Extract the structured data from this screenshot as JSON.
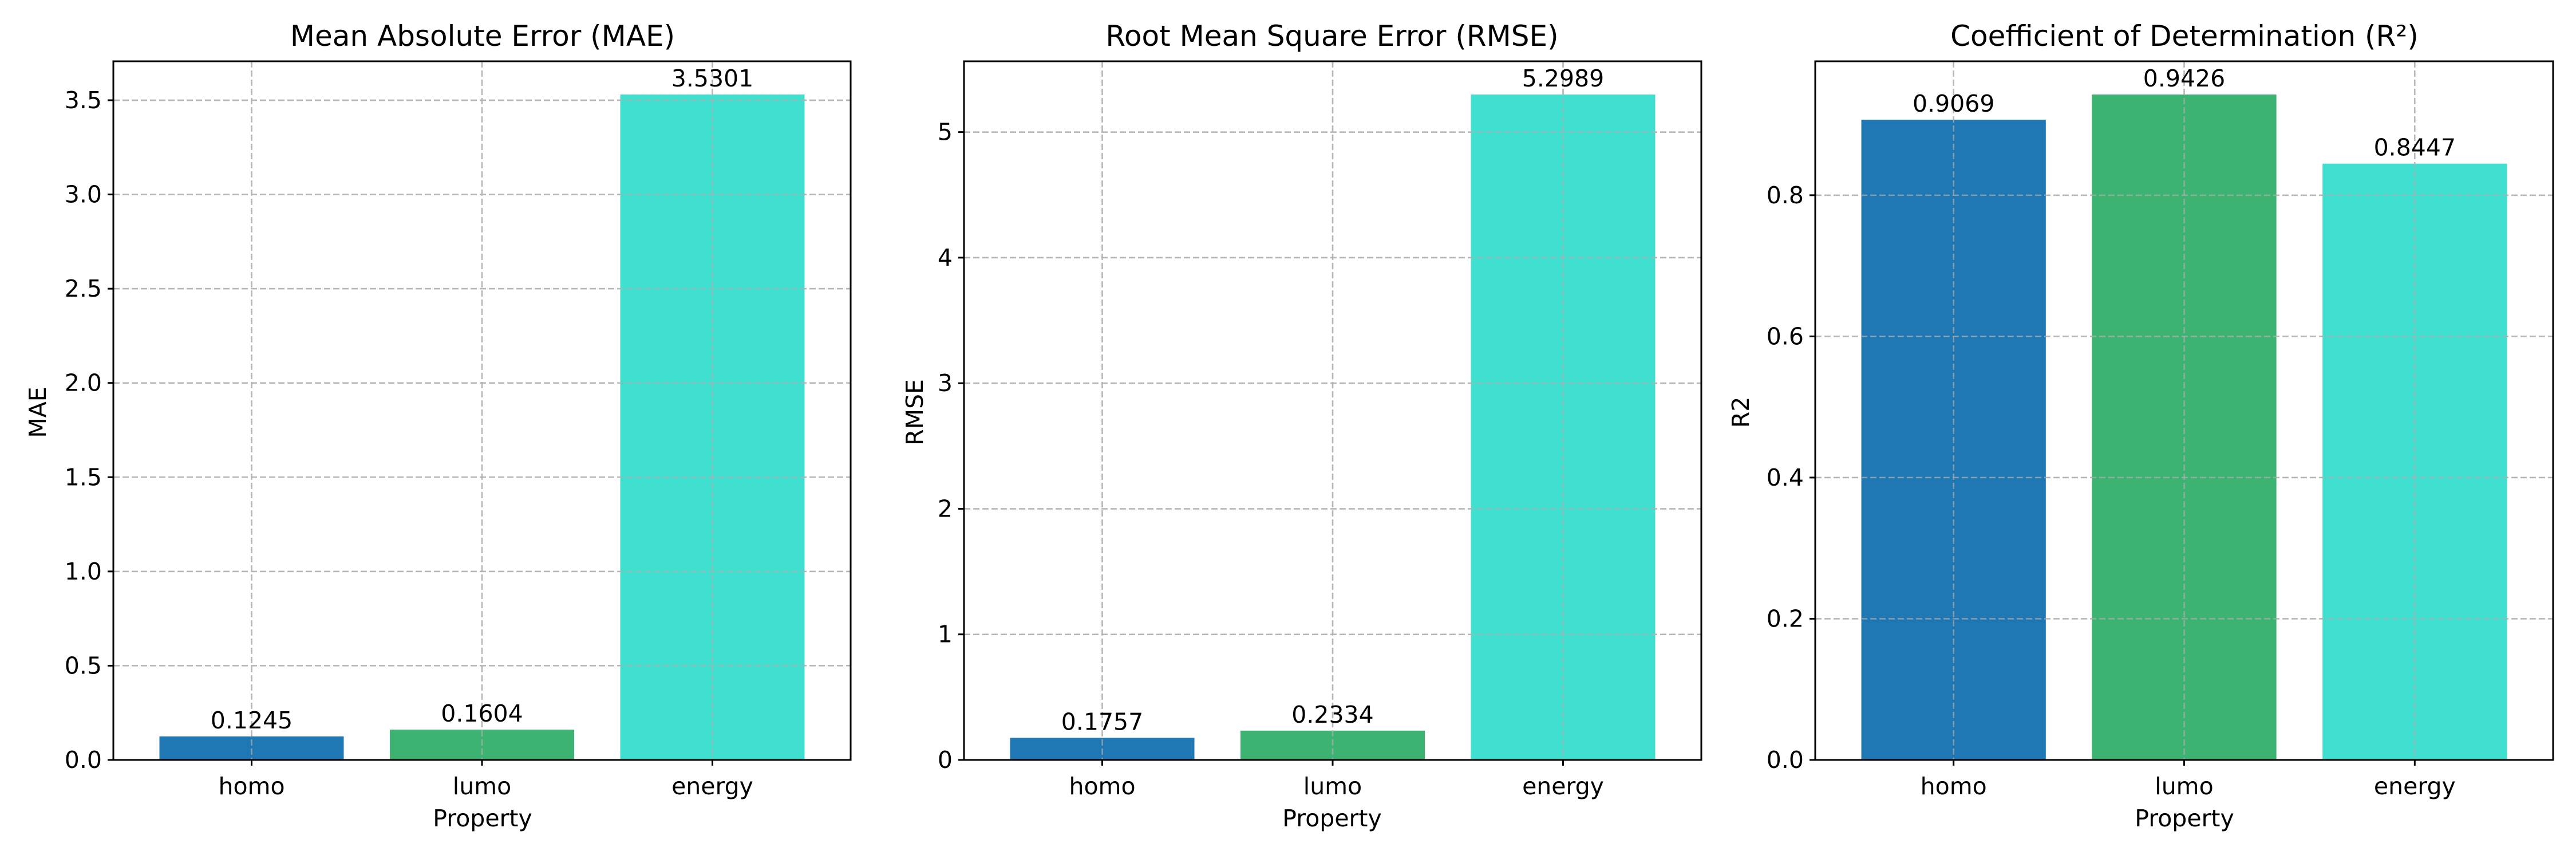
{
  "chart_data": [
    {
      "type": "bar",
      "title": "Mean Absolute Error (MAE)",
      "xlabel": "Property",
      "ylabel": "MAE",
      "categories": [
        "homo",
        "lumo",
        "energy"
      ],
      "values": [
        0.1245,
        0.1604,
        3.5301
      ],
      "value_labels": [
        "0.1245",
        "0.1604",
        "3.5301"
      ],
      "colors": [
        "#1f77b4",
        "#3cb371",
        "#40e0d0"
      ],
      "ylim": [
        0,
        3.7066
      ],
      "yticks": [
        0,
        0.5,
        1.0,
        1.5,
        2.0,
        2.5,
        3.0,
        3.5
      ],
      "ytick_labels": [
        "0.0",
        "0.5",
        "1.0",
        "1.5",
        "2.0",
        "2.5",
        "3.0",
        "3.5"
      ],
      "grid": true
    },
    {
      "type": "bar",
      "title": "Root Mean Square Error (RMSE)",
      "xlabel": "Property",
      "ylabel": "RMSE",
      "categories": [
        "homo",
        "lumo",
        "energy"
      ],
      "values": [
        0.1757,
        0.2334,
        5.2989
      ],
      "value_labels": [
        "0.1757",
        "0.2334",
        "5.2989"
      ],
      "colors": [
        "#1f77b4",
        "#3cb371",
        "#40e0d0"
      ],
      "ylim": [
        0,
        5.5638
      ],
      "yticks": [
        0,
        1,
        2,
        3,
        4,
        5
      ],
      "ytick_labels": [
        "0",
        "1",
        "2",
        "3",
        "4",
        "5"
      ],
      "grid": true
    },
    {
      "type": "bar",
      "title": "Coefficient of Determination (R²)",
      "xlabel": "Property",
      "ylabel": "R2",
      "categories": [
        "homo",
        "lumo",
        "energy"
      ],
      "values": [
        0.9069,
        0.9426,
        0.8447
      ],
      "value_labels": [
        "0.9069",
        "0.9426",
        "0.8447"
      ],
      "colors": [
        "#1f77b4",
        "#3cb371",
        "#40e0d0"
      ],
      "ylim": [
        0,
        0.9897
      ],
      "yticks": [
        0,
        0.2,
        0.4,
        0.6,
        0.8
      ],
      "ytick_labels": [
        "0.0",
        "0.2",
        "0.4",
        "0.6",
        "0.8"
      ],
      "grid": true
    }
  ]
}
